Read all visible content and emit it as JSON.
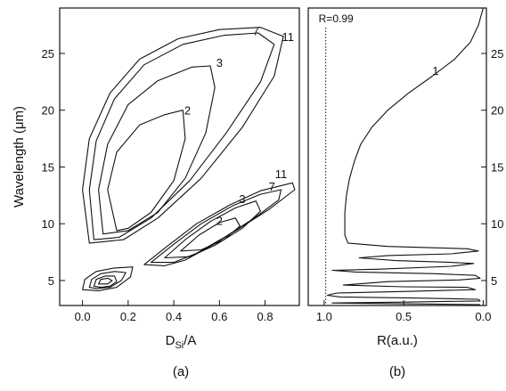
{
  "chart_data": [
    {
      "panel_label": "(a)",
      "type": "contour",
      "xlabel_main": "D",
      "xlabel_sub": "Si",
      "xlabel_tail": "/A",
      "ylabel": "Wavelength (μm)",
      "xlim": [
        -0.1,
        0.95
      ],
      "ylim": [
        2.8,
        29.0
      ],
      "xticks": [
        "0.0",
        "0.2",
        "0.4",
        "0.6",
        "0.8"
      ],
      "xtick_values": [
        0.0,
        0.2,
        0.4,
        0.6,
        0.8
      ],
      "yticks": [
        "5",
        "10",
        "15",
        "20",
        "25"
      ],
      "ytick_values": [
        5,
        10,
        15,
        20,
        25
      ],
      "regions": [
        {
          "name": "upper",
          "contours": [
            {
              "level": "11",
              "points": [
                [
                  0.03,
                  8.3
                ],
                [
                  0.0,
                  13.0
                ],
                [
                  0.03,
                  17.5
                ],
                [
                  0.12,
                  21.5
                ],
                [
                  0.25,
                  24.5
                ],
                [
                  0.42,
                  26.3
                ],
                [
                  0.6,
                  27.1
                ],
                [
                  0.78,
                  27.3
                ],
                [
                  0.88,
                  26.5
                ],
                [
                  0.84,
                  23.0
                ],
                [
                  0.7,
                  18.5
                ],
                [
                  0.52,
                  14.0
                ],
                [
                  0.33,
                  10.5
                ],
                [
                  0.18,
                  8.6
                ],
                [
                  0.03,
                  8.3
                ]
              ]
            },
            {
              "level": "7",
              "points": [
                [
                  0.05,
                  8.6
                ],
                [
                  0.03,
                  13.0
                ],
                [
                  0.06,
                  17.3
                ],
                [
                  0.14,
                  21.0
                ],
                [
                  0.27,
                  24.0
                ],
                [
                  0.44,
                  25.8
                ],
                [
                  0.62,
                  26.6
                ],
                [
                  0.77,
                  26.8
                ],
                [
                  0.84,
                  25.8
                ],
                [
                  0.78,
                  22.5
                ],
                [
                  0.63,
                  18.0
                ],
                [
                  0.47,
                  13.8
                ],
                [
                  0.3,
                  10.5
                ],
                [
                  0.16,
                  8.8
                ],
                [
                  0.05,
                  8.6
                ]
              ]
            },
            {
              "level": "3",
              "points": [
                [
                  0.09,
                  9.1
                ],
                [
                  0.07,
                  13.0
                ],
                [
                  0.11,
                  17.0
                ],
                [
                  0.2,
                  20.5
                ],
                [
                  0.33,
                  22.6
                ],
                [
                  0.48,
                  23.8
                ],
                [
                  0.56,
                  23.9
                ],
                [
                  0.58,
                  22.0
                ],
                [
                  0.54,
                  18.0
                ],
                [
                  0.45,
                  14.0
                ],
                [
                  0.33,
                  11.0
                ],
                [
                  0.2,
                  9.4
                ],
                [
                  0.09,
                  9.1
                ]
              ]
            },
            {
              "level": "2",
              "points": [
                [
                  0.15,
                  9.4
                ],
                [
                  0.11,
                  13.0
                ],
                [
                  0.15,
                  16.3
                ],
                [
                  0.25,
                  18.7
                ],
                [
                  0.36,
                  19.6
                ],
                [
                  0.44,
                  20.0
                ],
                [
                  0.45,
                  17.5
                ],
                [
                  0.4,
                  13.8
                ],
                [
                  0.3,
                  11.0
                ],
                [
                  0.2,
                  9.6
                ],
                [
                  0.15,
                  9.4
                ]
              ]
            }
          ]
        },
        {
          "name": "middle",
          "contours": [
            {
              "level": "11",
              "points": [
                [
                  0.27,
                  6.4
                ],
                [
                  0.37,
                  8.0
                ],
                [
                  0.5,
                  10.0
                ],
                [
                  0.65,
                  11.7
                ],
                [
                  0.78,
                  12.9
                ],
                [
                  0.92,
                  13.6
                ],
                [
                  0.93,
                  13.0
                ],
                [
                  0.82,
                  11.3
                ],
                [
                  0.68,
                  9.5
                ],
                [
                  0.55,
                  7.9
                ],
                [
                  0.45,
                  6.8
                ],
                [
                  0.36,
                  6.3
                ],
                [
                  0.27,
                  6.4
                ]
              ]
            },
            {
              "level": "7",
              "points": [
                [
                  0.3,
                  6.6
                ],
                [
                  0.4,
                  8.2
                ],
                [
                  0.52,
                  10.0
                ],
                [
                  0.66,
                  11.6
                ],
                [
                  0.78,
                  12.6
                ],
                [
                  0.87,
                  13.0
                ],
                [
                  0.86,
                  12.1
                ],
                [
                  0.76,
                  10.6
                ],
                [
                  0.63,
                  8.9
                ],
                [
                  0.5,
                  7.4
                ],
                [
                  0.4,
                  6.6
                ],
                [
                  0.3,
                  6.6
                ]
              ]
            },
            {
              "level": "3",
              "points": [
                [
                  0.36,
                  7.0
                ],
                [
                  0.45,
                  8.6
                ],
                [
                  0.56,
                  10.2
                ],
                [
                  0.67,
                  11.4
                ],
                [
                  0.76,
                  12.0
                ],
                [
                  0.78,
                  11.1
                ],
                [
                  0.7,
                  9.6
                ],
                [
                  0.58,
                  8.1
                ],
                [
                  0.47,
                  7.1
                ],
                [
                  0.36,
                  7.0
                ]
              ]
            },
            {
              "level": "2",
              "points": [
                [
                  0.43,
                  7.6
                ],
                [
                  0.51,
                  9.0
                ],
                [
                  0.6,
                  10.1
                ],
                [
                  0.67,
                  10.5
                ],
                [
                  0.69,
                  9.8
                ],
                [
                  0.62,
                  8.6
                ],
                [
                  0.52,
                  7.7
                ],
                [
                  0.43,
                  7.6
                ]
              ]
            }
          ]
        },
        {
          "name": "lower",
          "contours": [
            {
              "level": "11",
              "points": [
                [
                  0.0,
                  4.2
                ],
                [
                  0.01,
                  5.1
                ],
                [
                  0.06,
                  5.8
                ],
                [
                  0.14,
                  6.1
                ],
                [
                  0.22,
                  6.2
                ],
                [
                  0.21,
                  5.3
                ],
                [
                  0.15,
                  4.4
                ],
                [
                  0.07,
                  4.1
                ],
                [
                  0.0,
                  4.2
                ]
              ]
            },
            {
              "level": "7",
              "points": [
                [
                  0.03,
                  4.4
                ],
                [
                  0.04,
                  5.1
                ],
                [
                  0.08,
                  5.6
                ],
                [
                  0.14,
                  5.8
                ],
                [
                  0.19,
                  5.7
                ],
                [
                  0.17,
                  5.0
                ],
                [
                  0.12,
                  4.4
                ],
                [
                  0.06,
                  4.3
                ],
                [
                  0.03,
                  4.4
                ]
              ]
            },
            {
              "level": "3",
              "points": [
                [
                  0.05,
                  4.5
                ],
                [
                  0.06,
                  5.1
                ],
                [
                  0.1,
                  5.4
                ],
                [
                  0.14,
                  5.4
                ],
                [
                  0.15,
                  4.9
                ],
                [
                  0.12,
                  4.5
                ],
                [
                  0.08,
                  4.4
                ],
                [
                  0.05,
                  4.5
                ]
              ]
            },
            {
              "level": "2",
              "points": [
                [
                  0.07,
                  4.7
                ],
                [
                  0.08,
                  5.1
                ],
                [
                  0.11,
                  5.2
                ],
                [
                  0.13,
                  5.0
                ],
                [
                  0.11,
                  4.7
                ],
                [
                  0.07,
                  4.7
                ]
              ]
            }
          ]
        }
      ],
      "contour_labels": [
        {
          "text": "2",
          "x": 0.46,
          "y": 20.0
        },
        {
          "text": "3",
          "x": 0.6,
          "y": 24.2
        },
        {
          "text": "7",
          "x": 0.76,
          "y": 27.0
        },
        {
          "text": "11",
          "x": 0.9,
          "y": 26.5
        },
        {
          "text": "11",
          "x": 0.87,
          "y": 14.4
        },
        {
          "text": "7",
          "x": 0.83,
          "y": 13.3
        },
        {
          "text": "3",
          "x": 0.7,
          "y": 12.2
        },
        {
          "text": "2",
          "x": 0.6,
          "y": 10.3
        }
      ]
    },
    {
      "panel_label": "(b)",
      "type": "line",
      "xlabel": "R(a.u.)",
      "xlim": [
        1.1,
        -0.02
      ],
      "ylim": [
        2.8,
        29.0
      ],
      "xticks": [
        "1.0",
        "0.5",
        "0.0"
      ],
      "xtick_values": [
        1.0,
        0.5,
        0.0
      ],
      "yticks": [
        "5",
        "10",
        "15",
        "20",
        "25"
      ],
      "ytick_values": [
        5,
        10,
        15,
        20,
        25
      ],
      "reference_line": {
        "label": "R=0.99",
        "x": 0.99
      },
      "series": [
        {
          "name": "1",
          "points": [
            [
              0.0,
              29.0
            ],
            [
              0.03,
              27.5
            ],
            [
              0.08,
              26.0
            ],
            [
              0.18,
              24.5
            ],
            [
              0.32,
              23.0
            ],
            [
              0.47,
              21.5
            ],
            [
              0.6,
              20.0
            ],
            [
              0.7,
              18.5
            ],
            [
              0.77,
              17.0
            ],
            [
              0.81,
              15.5
            ],
            [
              0.84,
              14.0
            ],
            [
              0.86,
              12.5
            ],
            [
              0.87,
              11.0
            ],
            [
              0.87,
              10.0
            ],
            [
              0.87,
              9.0
            ],
            [
              0.85,
              8.3
            ],
            [
              0.6,
              8.0
            ],
            [
              0.1,
              7.8
            ],
            [
              0.03,
              7.6
            ],
            [
              0.2,
              7.35
            ],
            [
              0.6,
              7.2
            ],
            [
              0.78,
              7.0
            ],
            [
              0.55,
              6.75
            ],
            [
              0.2,
              6.6
            ],
            [
              0.06,
              6.5
            ],
            [
              0.2,
              6.25
            ],
            [
              0.65,
              6.0
            ],
            [
              0.95,
              5.9
            ],
            [
              0.8,
              5.75
            ],
            [
              0.3,
              5.6
            ],
            [
              0.05,
              5.45
            ],
            [
              0.02,
              5.2
            ],
            [
              0.15,
              5.05
            ],
            [
              0.6,
              4.9
            ],
            [
              0.88,
              4.6
            ],
            [
              0.5,
              4.45
            ],
            [
              0.1,
              4.4
            ],
            [
              0.05,
              4.2
            ],
            [
              0.45,
              4.05
            ],
            [
              0.92,
              3.9
            ],
            [
              0.98,
              3.7
            ],
            [
              0.9,
              3.55
            ],
            [
              0.4,
              3.45
            ],
            [
              0.03,
              3.35
            ],
            [
              0.02,
              3.2
            ],
            [
              0.5,
              3.1
            ],
            [
              0.95,
              3.02
            ],
            [
              0.5,
              2.95
            ],
            [
              0.02,
              2.88
            ]
          ]
        }
      ]
    }
  ]
}
